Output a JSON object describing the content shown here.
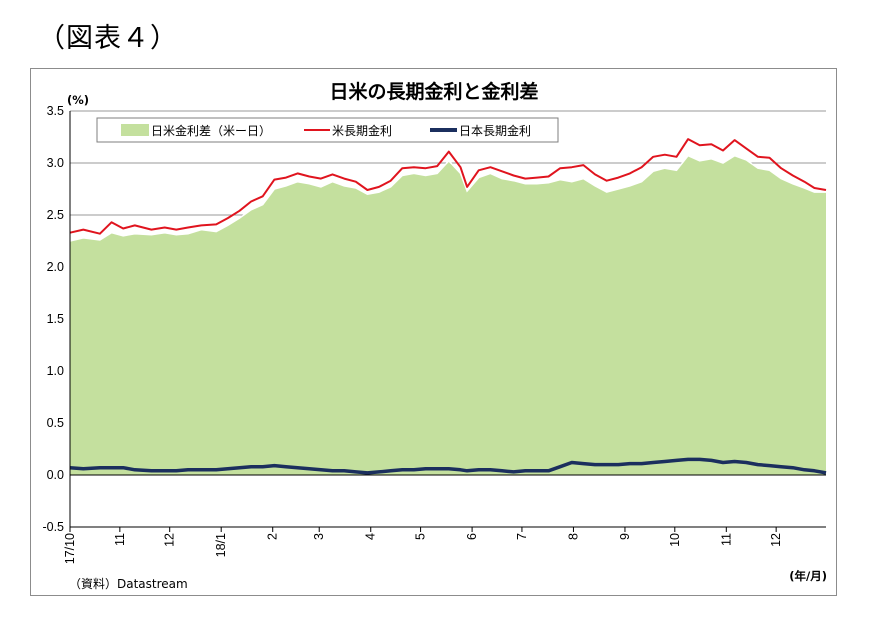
{
  "figure_label": "（図表４）",
  "source_note": "（資料）Datastream",
  "colors": {
    "spread_fill": "#c4e09e",
    "spread_edge": "#ffffff",
    "us_line": "#e0141e",
    "jp_line": "#1b2f5e",
    "grid": "#9a9a9a",
    "axis": "#000000"
  },
  "chart_data": {
    "type": "area",
    "title": "日米の長期金利と金利差",
    "ylabel": "(%)",
    "xlabel": "(年/月)",
    "ylim": [
      -0.5,
      3.5
    ],
    "yticks": [
      "3.5",
      "3.0",
      "2.5",
      "2.0",
      "1.5",
      "1.0",
      "0.5",
      "0.0",
      "-0.5"
    ],
    "ytick_values": [
      3.5,
      3.0,
      2.5,
      2.0,
      1.5,
      1.0,
      0.5,
      0.0,
      -0.5
    ],
    "grid": "horizontal",
    "legend_position": "top-left",
    "xlim": [
      "2017-10-02",
      "2018-12-31"
    ],
    "xticks": [
      {
        "label": "17/10",
        "date": "2017-10-02"
      },
      {
        "label": "11",
        "date": "2017-11-01"
      },
      {
        "label": "12",
        "date": "2017-12-01"
      },
      {
        "label": "18/1",
        "date": "2018-01-01"
      },
      {
        "label": "2",
        "date": "2018-02-01"
      },
      {
        "label": "3",
        "date": "2018-03-01"
      },
      {
        "label": "4",
        "date": "2018-04-01"
      },
      {
        "label": "5",
        "date": "2018-05-01"
      },
      {
        "label": "6",
        "date": "2018-06-01"
      },
      {
        "label": "7",
        "date": "2018-07-01"
      },
      {
        "label": "8",
        "date": "2018-08-01"
      },
      {
        "label": "9",
        "date": "2018-09-01"
      },
      {
        "label": "10",
        "date": "2018-10-01"
      },
      {
        "label": "11",
        "date": "2018-11-01"
      },
      {
        "label": "12",
        "date": "2018-12-01"
      }
    ],
    "series": [
      {
        "name": "日米金利差（米ー日）",
        "kind": "area",
        "points": [
          [
            "2017-10-02",
            2.25
          ],
          [
            "2017-10-10",
            2.28
          ],
          [
            "2017-10-20",
            2.26
          ],
          [
            "2017-10-27",
            2.33
          ],
          [
            "2017-11-03",
            2.3
          ],
          [
            "2017-11-10",
            2.32
          ],
          [
            "2017-11-20",
            2.31
          ],
          [
            "2017-11-28",
            2.33
          ],
          [
            "2017-12-05",
            2.31
          ],
          [
            "2017-12-12",
            2.32
          ],
          [
            "2017-12-20",
            2.36
          ],
          [
            "2017-12-29",
            2.34
          ],
          [
            "2018-01-05",
            2.4
          ],
          [
            "2018-01-12",
            2.47
          ],
          [
            "2018-01-19",
            2.55
          ],
          [
            "2018-01-26",
            2.6
          ],
          [
            "2018-02-02",
            2.75
          ],
          [
            "2018-02-09",
            2.78
          ],
          [
            "2018-02-16",
            2.82
          ],
          [
            "2018-02-23",
            2.8
          ],
          [
            "2018-03-02",
            2.77
          ],
          [
            "2018-03-09",
            2.82
          ],
          [
            "2018-03-16",
            2.78
          ],
          [
            "2018-03-23",
            2.76
          ],
          [
            "2018-03-30",
            2.7
          ],
          [
            "2018-04-06",
            2.72
          ],
          [
            "2018-04-13",
            2.77
          ],
          [
            "2018-04-20",
            2.88
          ],
          [
            "2018-04-27",
            2.9
          ],
          [
            "2018-05-04",
            2.88
          ],
          [
            "2018-05-11",
            2.9
          ],
          [
            "2018-05-18",
            3.02
          ],
          [
            "2018-05-25",
            2.9
          ],
          [
            "2018-05-29",
            2.73
          ],
          [
            "2018-06-05",
            2.86
          ],
          [
            "2018-06-12",
            2.9
          ],
          [
            "2018-06-19",
            2.85
          ],
          [
            "2018-06-26",
            2.83
          ],
          [
            "2018-07-03",
            2.8
          ],
          [
            "2018-07-10",
            2.8
          ],
          [
            "2018-07-17",
            2.81
          ],
          [
            "2018-07-24",
            2.84
          ],
          [
            "2018-07-31",
            2.82
          ],
          [
            "2018-08-07",
            2.85
          ],
          [
            "2018-08-14",
            2.78
          ],
          [
            "2018-08-21",
            2.72
          ],
          [
            "2018-08-28",
            2.75
          ],
          [
            "2018-09-04",
            2.78
          ],
          [
            "2018-09-11",
            2.82
          ],
          [
            "2018-09-18",
            2.92
          ],
          [
            "2018-09-25",
            2.95
          ],
          [
            "2018-10-02",
            2.93
          ],
          [
            "2018-10-09",
            3.07
          ],
          [
            "2018-10-16",
            3.02
          ],
          [
            "2018-10-23",
            3.04
          ],
          [
            "2018-10-30",
            3.0
          ],
          [
            "2018-11-06",
            3.07
          ],
          [
            "2018-11-13",
            3.03
          ],
          [
            "2018-11-20",
            2.95
          ],
          [
            "2018-11-27",
            2.93
          ],
          [
            "2018-12-04",
            2.85
          ],
          [
            "2018-12-11",
            2.8
          ],
          [
            "2018-12-18",
            2.76
          ],
          [
            "2018-12-24",
            2.72
          ],
          [
            "2018-12-31",
            2.72
          ]
        ]
      },
      {
        "name": "米長期金利",
        "kind": "line",
        "points": [
          [
            "2017-10-02",
            2.33
          ],
          [
            "2017-10-10",
            2.36
          ],
          [
            "2017-10-20",
            2.32
          ],
          [
            "2017-10-27",
            2.43
          ],
          [
            "2017-11-03",
            2.37
          ],
          [
            "2017-11-10",
            2.4
          ],
          [
            "2017-11-20",
            2.36
          ],
          [
            "2017-11-28",
            2.38
          ],
          [
            "2017-12-05",
            2.36
          ],
          [
            "2017-12-12",
            2.38
          ],
          [
            "2017-12-20",
            2.4
          ],
          [
            "2017-12-29",
            2.41
          ],
          [
            "2018-01-05",
            2.47
          ],
          [
            "2018-01-12",
            2.54
          ],
          [
            "2018-01-19",
            2.63
          ],
          [
            "2018-01-26",
            2.68
          ],
          [
            "2018-02-02",
            2.84
          ],
          [
            "2018-02-09",
            2.86
          ],
          [
            "2018-02-16",
            2.9
          ],
          [
            "2018-02-23",
            2.87
          ],
          [
            "2018-03-02",
            2.85
          ],
          [
            "2018-03-09",
            2.89
          ],
          [
            "2018-03-16",
            2.85
          ],
          [
            "2018-03-23",
            2.82
          ],
          [
            "2018-03-30",
            2.74
          ],
          [
            "2018-04-06",
            2.77
          ],
          [
            "2018-04-13",
            2.83
          ],
          [
            "2018-04-20",
            2.95
          ],
          [
            "2018-04-27",
            2.96
          ],
          [
            "2018-05-04",
            2.95
          ],
          [
            "2018-05-11",
            2.97
          ],
          [
            "2018-05-18",
            3.11
          ],
          [
            "2018-05-25",
            2.96
          ],
          [
            "2018-05-29",
            2.77
          ],
          [
            "2018-06-05",
            2.93
          ],
          [
            "2018-06-12",
            2.96
          ],
          [
            "2018-06-19",
            2.92
          ],
          [
            "2018-06-26",
            2.88
          ],
          [
            "2018-07-03",
            2.85
          ],
          [
            "2018-07-10",
            2.86
          ],
          [
            "2018-07-17",
            2.87
          ],
          [
            "2018-07-24",
            2.95
          ],
          [
            "2018-07-31",
            2.96
          ],
          [
            "2018-08-07",
            2.98
          ],
          [
            "2018-08-14",
            2.89
          ],
          [
            "2018-08-21",
            2.83
          ],
          [
            "2018-08-28",
            2.86
          ],
          [
            "2018-09-04",
            2.9
          ],
          [
            "2018-09-11",
            2.96
          ],
          [
            "2018-09-18",
            3.06
          ],
          [
            "2018-09-25",
            3.08
          ],
          [
            "2018-10-02",
            3.06
          ],
          [
            "2018-10-09",
            3.23
          ],
          [
            "2018-10-16",
            3.17
          ],
          [
            "2018-10-23",
            3.18
          ],
          [
            "2018-10-30",
            3.12
          ],
          [
            "2018-11-06",
            3.22
          ],
          [
            "2018-11-13",
            3.14
          ],
          [
            "2018-11-20",
            3.06
          ],
          [
            "2018-11-27",
            3.05
          ],
          [
            "2018-12-04",
            2.95
          ],
          [
            "2018-12-11",
            2.88
          ],
          [
            "2018-12-18",
            2.82
          ],
          [
            "2018-12-24",
            2.76
          ],
          [
            "2018-12-31",
            2.74
          ]
        ]
      },
      {
        "name": "日本長期金利",
        "kind": "line",
        "points": [
          [
            "2017-10-02",
            0.07
          ],
          [
            "2017-10-10",
            0.06
          ],
          [
            "2017-10-20",
            0.07
          ],
          [
            "2017-10-27",
            0.07
          ],
          [
            "2017-11-03",
            0.07
          ],
          [
            "2017-11-10",
            0.05
          ],
          [
            "2017-11-20",
            0.04
          ],
          [
            "2017-11-28",
            0.04
          ],
          [
            "2017-12-05",
            0.04
          ],
          [
            "2017-12-12",
            0.05
          ],
          [
            "2017-12-20",
            0.05
          ],
          [
            "2017-12-29",
            0.05
          ],
          [
            "2018-01-05",
            0.06
          ],
          [
            "2018-01-12",
            0.07
          ],
          [
            "2018-01-19",
            0.08
          ],
          [
            "2018-01-26",
            0.08
          ],
          [
            "2018-02-02",
            0.09
          ],
          [
            "2018-02-09",
            0.08
          ],
          [
            "2018-02-16",
            0.07
          ],
          [
            "2018-02-23",
            0.06
          ],
          [
            "2018-03-02",
            0.05
          ],
          [
            "2018-03-09",
            0.04
          ],
          [
            "2018-03-16",
            0.04
          ],
          [
            "2018-03-23",
            0.03
          ],
          [
            "2018-03-30",
            0.02
          ],
          [
            "2018-04-06",
            0.03
          ],
          [
            "2018-04-13",
            0.04
          ],
          [
            "2018-04-20",
            0.05
          ],
          [
            "2018-04-27",
            0.05
          ],
          [
            "2018-05-04",
            0.06
          ],
          [
            "2018-05-11",
            0.06
          ],
          [
            "2018-05-18",
            0.06
          ],
          [
            "2018-05-25",
            0.05
          ],
          [
            "2018-05-29",
            0.04
          ],
          [
            "2018-06-05",
            0.05
          ],
          [
            "2018-06-12",
            0.05
          ],
          [
            "2018-06-19",
            0.04
          ],
          [
            "2018-06-26",
            0.03
          ],
          [
            "2018-07-03",
            0.04
          ],
          [
            "2018-07-10",
            0.04
          ],
          [
            "2018-07-17",
            0.04
          ],
          [
            "2018-07-24",
            0.08
          ],
          [
            "2018-07-31",
            0.12
          ],
          [
            "2018-08-07",
            0.11
          ],
          [
            "2018-08-14",
            0.1
          ],
          [
            "2018-08-21",
            0.1
          ],
          [
            "2018-08-28",
            0.1
          ],
          [
            "2018-09-04",
            0.11
          ],
          [
            "2018-09-11",
            0.11
          ],
          [
            "2018-09-18",
            0.12
          ],
          [
            "2018-09-25",
            0.13
          ],
          [
            "2018-10-02",
            0.14
          ],
          [
            "2018-10-09",
            0.15
          ],
          [
            "2018-10-16",
            0.15
          ],
          [
            "2018-10-23",
            0.14
          ],
          [
            "2018-10-30",
            0.12
          ],
          [
            "2018-11-06",
            0.13
          ],
          [
            "2018-11-13",
            0.12
          ],
          [
            "2018-11-20",
            0.1
          ],
          [
            "2018-11-27",
            0.09
          ],
          [
            "2018-12-04",
            0.08
          ],
          [
            "2018-12-11",
            0.07
          ],
          [
            "2018-12-18",
            0.05
          ],
          [
            "2018-12-24",
            0.04
          ],
          [
            "2018-12-31",
            0.02
          ]
        ]
      }
    ]
  }
}
